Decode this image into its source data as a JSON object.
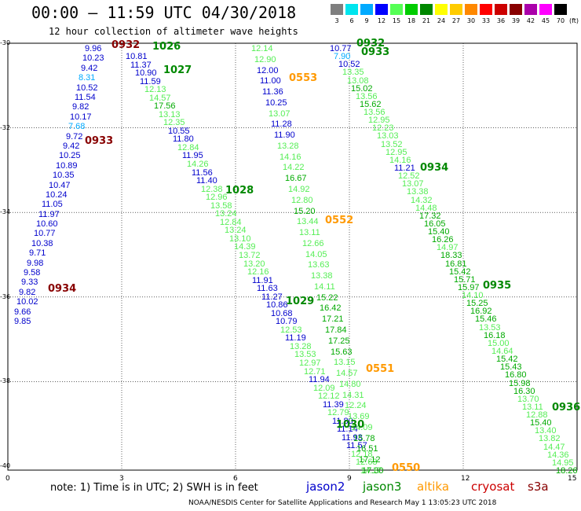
{
  "header": {
    "title": "00:00 – 11:59 UTC 04/30/2018",
    "subtitle": "12 hour collection of altimeter wave heights"
  },
  "legend": {
    "unit_label": "(ft)",
    "bins": [
      {
        "label": "3",
        "color": "#7f7f7f"
      },
      {
        "label": "6",
        "color": "#00e5ee"
      },
      {
        "label": "9",
        "color": "#00aaff"
      },
      {
        "label": "12",
        "color": "#0000ff"
      },
      {
        "label": "15",
        "color": "#55ff55"
      },
      {
        "label": "18",
        "color": "#00cc00"
      },
      {
        "label": "21",
        "color": "#008800"
      },
      {
        "label": "24",
        "color": "#ffff00"
      },
      {
        "label": "27",
        "color": "#ffcc00"
      },
      {
        "label": "30",
        "color": "#ff8800"
      },
      {
        "label": "33",
        "color": "#ff0000"
      },
      {
        "label": "36",
        "color": "#cc0000"
      },
      {
        "label": "39",
        "color": "#880000"
      },
      {
        "label": "42",
        "color": "#aa00aa"
      },
      {
        "label": "45",
        "color": "#ff00ff"
      },
      {
        "label": "70",
        "color": "#000000"
      }
    ]
  },
  "axes": {
    "lat_labels": [
      "-30",
      "-32",
      "-34",
      "-36",
      "-38",
      "-40"
    ],
    "lon_labels": [
      "0",
      "3",
      "6",
      "9",
      "12",
      "15"
    ]
  },
  "satellites": [
    {
      "name": "jason2",
      "color": "#0000cc"
    },
    {
      "name": "jason3",
      "color": "#008800"
    },
    {
      "name": "altika",
      "color": "#ff9900"
    },
    {
      "name": "cryosat",
      "color": "#cc0000"
    },
    {
      "name": "s3a",
      "color": "#880000"
    }
  ],
  "note": "note: 1) Time is in UTC; 2) SWH is in feet",
  "credit": "NOAA/NESDIS Center for Satellite Applications and Research   May  1 13:05:23 UTC 2018",
  "tracks": [
    {
      "sat": "jason2-west",
      "values": [
        {
          "t": "9.96",
          "c": "#0000cc"
        },
        {
          "t": "10.23",
          "c": "#0000cc"
        },
        {
          "t": "9.42",
          "c": "#0000cc"
        },
        {
          "t": "8.31",
          "c": "#00aaff"
        },
        {
          "t": "10.52",
          "c": "#0000cc"
        },
        {
          "t": "11.54",
          "c": "#0000cc"
        },
        {
          "t": "9.82",
          "c": "#0000cc"
        },
        {
          "t": "10.17",
          "c": "#0000cc"
        },
        {
          "t": "7.68",
          "c": "#00aaff"
        },
        {
          "t": "9.72",
          "c": "#0000cc"
        },
        {
          "t": "9.42",
          "c": "#0000cc"
        },
        {
          "t": "10.25",
          "c": "#0000cc"
        },
        {
          "t": "10.89",
          "c": "#0000cc"
        },
        {
          "t": "10.35",
          "c": "#0000cc"
        },
        {
          "t": "10.47",
          "c": "#0000cc"
        },
        {
          "t": "10.24",
          "c": "#0000cc"
        },
        {
          "t": "11.05",
          "c": "#0000cc"
        },
        {
          "t": "11.97",
          "c": "#0000cc"
        },
        {
          "t": "10.60",
          "c": "#0000cc"
        },
        {
          "t": "10.77",
          "c": "#0000cc"
        },
        {
          "t": "10.38",
          "c": "#0000cc"
        },
        {
          "t": "9.71",
          "c": "#0000cc"
        },
        {
          "t": "9.98",
          "c": "#0000cc"
        },
        {
          "t": "9.58",
          "c": "#0000cc"
        },
        {
          "t": "9.33",
          "c": "#0000cc"
        },
        {
          "t": "9.82",
          "c": "#0000cc"
        },
        {
          "t": "10.02",
          "c": "#0000cc"
        },
        {
          "t": "9.66",
          "c": "#0000cc"
        },
        {
          "t": "9.85",
          "c": "#0000cc"
        }
      ]
    },
    {
      "sat": "track-2",
      "values": [
        {
          "t": "10.81",
          "c": "#0000cc"
        },
        {
          "t": "11.37",
          "c": "#0000cc"
        },
        {
          "t": "10.90",
          "c": "#0000cc"
        },
        {
          "t": "11.59",
          "c": "#0000cc"
        },
        {
          "t": "12.13",
          "c": "#55ee55"
        },
        {
          "t": "14.57",
          "c": "#55ee55"
        },
        {
          "t": "17.56",
          "c": "#00aa00"
        },
        {
          "t": "13.13",
          "c": "#55ee55"
        },
        {
          "t": "12.35",
          "c": "#55ee55"
        },
        {
          "t": "10.55",
          "c": "#0000cc"
        },
        {
          "t": "11.80",
          "c": "#0000cc"
        },
        {
          "t": "12.84",
          "c": "#55ee55"
        },
        {
          "t": "11.95",
          "c": "#0000cc"
        },
        {
          "t": "14.26",
          "c": "#55ee55"
        },
        {
          "t": "11.56",
          "c": "#0000cc"
        },
        {
          "t": "11.40",
          "c": "#0000cc"
        },
        {
          "t": "12.38",
          "c": "#55ee55"
        },
        {
          "t": "12.96",
          "c": "#55ee55"
        },
        {
          "t": "13.58",
          "c": "#55ee55"
        },
        {
          "t": "13.24",
          "c": "#55ee55"
        },
        {
          "t": "12.84",
          "c": "#55ee55"
        },
        {
          "t": "13.24",
          "c": "#55ee55"
        },
        {
          "t": "13.10",
          "c": "#55ee55"
        },
        {
          "t": "14.39",
          "c": "#55ee55"
        },
        {
          "t": "13.72",
          "c": "#55ee55"
        },
        {
          "t": "13.20",
          "c": "#55ee55"
        },
        {
          "t": "12.16",
          "c": "#55ee55"
        },
        {
          "t": "11.91",
          "c": "#0000cc"
        },
        {
          "t": "11.63",
          "c": "#0000cc"
        },
        {
          "t": "11.27",
          "c": "#0000cc"
        },
        {
          "t": "10.86",
          "c": "#0000cc"
        },
        {
          "t": "10.68",
          "c": "#0000cc"
        },
        {
          "t": "10.79",
          "c": "#0000cc"
        },
        {
          "t": "12.53",
          "c": "#55ee55"
        },
        {
          "t": "11.19",
          "c": "#0000cc"
        },
        {
          "t": "13.28",
          "c": "#55ee55"
        },
        {
          "t": "13.53",
          "c": "#55ee55"
        },
        {
          "t": "12.97",
          "c": "#55ee55"
        },
        {
          "t": "12.71",
          "c": "#55ee55"
        },
        {
          "t": "11.94",
          "c": "#0000cc"
        },
        {
          "t": "12.09",
          "c": "#55ee55"
        },
        {
          "t": "12.12",
          "c": "#55ee55"
        },
        {
          "t": "11.39",
          "c": "#0000cc"
        },
        {
          "t": "12.79",
          "c": "#55ee55"
        },
        {
          "t": "11.80",
          "c": "#0000cc"
        },
        {
          "t": "11.14",
          "c": "#0000cc"
        },
        {
          "t": "11.93",
          "c": "#0000cc"
        },
        {
          "t": "11.57",
          "c": "#0000cc"
        },
        {
          "t": "12.18",
          "c": "#55ee55"
        },
        {
          "t": "12.63",
          "c": "#55ee55"
        },
        {
          "t": "14.17",
          "c": "#55ee55"
        }
      ]
    },
    {
      "sat": "track-3",
      "values": [
        {
          "t": "12.14",
          "c": "#55ee55"
        },
        {
          "t": "12.90",
          "c": "#55ee55"
        },
        {
          "t": "12.00",
          "c": "#0000cc"
        },
        {
          "t": "11.00",
          "c": "#0000cc"
        },
        {
          "t": "11.36",
          "c": "#0000cc"
        },
        {
          "t": "10.25",
          "c": "#0000cc"
        },
        {
          "t": "13.07",
          "c": "#55ee55"
        },
        {
          "t": "11.28",
          "c": "#0000cc"
        },
        {
          "t": "11.90",
          "c": "#0000cc"
        },
        {
          "t": "13.28",
          "c": "#55ee55"
        },
        {
          "t": "14.16",
          "c": "#55ee55"
        },
        {
          "t": "14.22",
          "c": "#55ee55"
        },
        {
          "t": "16.67",
          "c": "#00aa00"
        },
        {
          "t": "14.92",
          "c": "#55ee55"
        },
        {
          "t": "12.80",
          "c": "#55ee55"
        },
        {
          "t": "15.20",
          "c": "#00aa00"
        },
        {
          "t": "13.44",
          "c": "#55ee55"
        },
        {
          "t": "13.11",
          "c": "#55ee55"
        },
        {
          "t": "12.66",
          "c": "#55ee55"
        },
        {
          "t": "14.05",
          "c": "#55ee55"
        },
        {
          "t": "13.63",
          "c": "#55ee55"
        },
        {
          "t": "13.38",
          "c": "#55ee55"
        },
        {
          "t": "14.11",
          "c": "#55ee55"
        },
        {
          "t": "15.22",
          "c": "#00aa00"
        },
        {
          "t": "16.42",
          "c": "#00aa00"
        },
        {
          "t": "17.21",
          "c": "#00aa00"
        },
        {
          "t": "17.84",
          "c": "#00aa00"
        },
        {
          "t": "17.25",
          "c": "#00aa00"
        },
        {
          "t": "15.63",
          "c": "#00aa00"
        },
        {
          "t": "13.15",
          "c": "#55ee55"
        },
        {
          "t": "14.57",
          "c": "#55ee55"
        },
        {
          "t": "14.80",
          "c": "#55ee55"
        },
        {
          "t": "14.31",
          "c": "#55ee55"
        },
        {
          "t": "12.24",
          "c": "#55ee55"
        },
        {
          "t": "13.69",
          "c": "#55ee55"
        },
        {
          "t": "14.09",
          "c": "#55ee55"
        },
        {
          "t": "15.78",
          "c": "#00aa00"
        },
        {
          "t": "16.51",
          "c": "#00aa00"
        },
        {
          "t": "17.12",
          "c": "#00aa00"
        },
        {
          "t": "17.30",
          "c": "#00aa00"
        }
      ]
    },
    {
      "sat": "track-4",
      "values": [
        {
          "t": "10.77",
          "c": "#0000cc"
        },
        {
          "t": "7.90",
          "c": "#00aaff"
        },
        {
          "t": "10.52",
          "c": "#0000cc"
        },
        {
          "t": "13.35",
          "c": "#55ee55"
        },
        {
          "t": "13.08",
          "c": "#55ee55"
        },
        {
          "t": "15.02",
          "c": "#00aa00"
        },
        {
          "t": "13.56",
          "c": "#55ee55"
        },
        {
          "t": "15.62",
          "c": "#00aa00"
        },
        {
          "t": "13.56",
          "c": "#55ee55"
        },
        {
          "t": "12.95",
          "c": "#55ee55"
        },
        {
          "t": "12.23",
          "c": "#55ee55"
        },
        {
          "t": "13.03",
          "c": "#55ee55"
        },
        {
          "t": "13.52",
          "c": "#55ee55"
        },
        {
          "t": "12.95",
          "c": "#55ee55"
        },
        {
          "t": "14.16",
          "c": "#55ee55"
        },
        {
          "t": "11.21",
          "c": "#0000cc"
        },
        {
          "t": "12.52",
          "c": "#55ee55"
        },
        {
          "t": "13.07",
          "c": "#55ee55"
        },
        {
          "t": "13.38",
          "c": "#55ee55"
        },
        {
          "t": "14.32",
          "c": "#55ee55"
        },
        {
          "t": "14.48",
          "c": "#55ee55"
        },
        {
          "t": "17.32",
          "c": "#00aa00"
        },
        {
          "t": "16.05",
          "c": "#00aa00"
        },
        {
          "t": "15.40",
          "c": "#00aa00"
        },
        {
          "t": "16.26",
          "c": "#00aa00"
        },
        {
          "t": "14.97",
          "c": "#55ee55"
        },
        {
          "t": "18.33",
          "c": "#00aa00"
        },
        {
          "t": "16.81",
          "c": "#00aa00"
        },
        {
          "t": "15.42",
          "c": "#00aa00"
        },
        {
          "t": "15.71",
          "c": "#00aa00"
        },
        {
          "t": "15.97",
          "c": "#00aa00"
        },
        {
          "t": "14.10",
          "c": "#55ee55"
        },
        {
          "t": "15.25",
          "c": "#00aa00"
        },
        {
          "t": "16.92",
          "c": "#00aa00"
        },
        {
          "t": "15.46",
          "c": "#00aa00"
        },
        {
          "t": "13.53",
          "c": "#55ee55"
        },
        {
          "t": "16.18",
          "c": "#00aa00"
        },
        {
          "t": "15.00",
          "c": "#55ee55"
        },
        {
          "t": "14.64",
          "c": "#55ee55"
        },
        {
          "t": "15.42",
          "c": "#00aa00"
        },
        {
          "t": "15.43",
          "c": "#00aa00"
        },
        {
          "t": "16.80",
          "c": "#00aa00"
        },
        {
          "t": "15.98",
          "c": "#00aa00"
        },
        {
          "t": "16.30",
          "c": "#00aa00"
        },
        {
          "t": "13.70",
          "c": "#55ee55"
        },
        {
          "t": "13.11",
          "c": "#55ee55"
        },
        {
          "t": "12.88",
          "c": "#55ee55"
        },
        {
          "t": "15.40",
          "c": "#00aa00"
        },
        {
          "t": "13.40",
          "c": "#55ee55"
        },
        {
          "t": "13.82",
          "c": "#55ee55"
        },
        {
          "t": "14.47",
          "c": "#55ee55"
        },
        {
          "t": "14.36",
          "c": "#55ee55"
        },
        {
          "t": "14.95",
          "c": "#55ee55"
        },
        {
          "t": "18.26",
          "c": "#00aa00"
        }
      ]
    }
  ],
  "pass_times": [
    {
      "label": "0932",
      "color": "#880000"
    },
    {
      "label": "1026",
      "color": "#008800"
    },
    {
      "label": "1027",
      "color": "#008800"
    },
    {
      "label": "0933",
      "color": "#880000"
    },
    {
      "label": "1028",
      "color": "#008800"
    },
    {
      "label": "0934",
      "color": "#880000"
    },
    {
      "label": "1029",
      "color": "#008800"
    },
    {
      "label": "1030",
      "color": "#008800"
    },
    {
      "label": "0553",
      "color": "#ff9900"
    },
    {
      "label": "0552",
      "color": "#ff9900"
    },
    {
      "label": "0551",
      "color": "#ff9900"
    },
    {
      "label": "0550",
      "color": "#ff9900"
    },
    {
      "label": "0932",
      "color": "#008800"
    },
    {
      "label": "0933",
      "color": "#008800"
    },
    {
      "label": "0934",
      "color": "#008800"
    },
    {
      "label": "0935",
      "color": "#008800"
    },
    {
      "label": "0936",
      "color": "#008800"
    }
  ]
}
